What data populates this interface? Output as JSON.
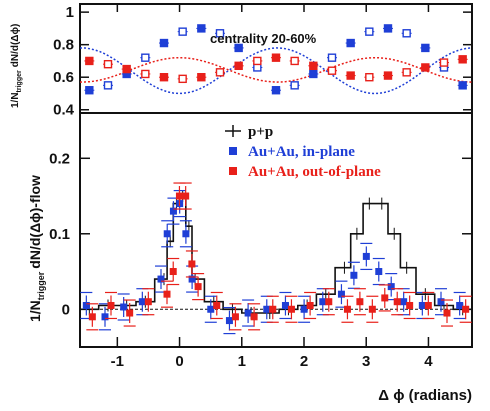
{
  "chart_data": [
    {
      "type": "line",
      "panel": "top",
      "annotation": "centrality 20-60%",
      "ylabel_main": "dN/d(Δϕ)",
      "ylabel_prefix": "1/N",
      "ylabel_sub": "trigger",
      "xlim": [
        -1.6,
        4.7
      ],
      "ylim": [
        0.38,
        1.05
      ],
      "yticks": [
        0.4,
        0.6,
        0.8,
        1
      ],
      "ytick_labels": [
        "0.4",
        "0.6",
        "0.8",
        "1"
      ],
      "grid": false,
      "x": [
        -1.45,
        -1.15,
        -0.85,
        -0.55,
        -0.25,
        0.05,
        0.35,
        0.65,
        0.95,
        1.25,
        1.55,
        1.85,
        2.15,
        2.45,
        2.75,
        3.05,
        3.35,
        3.65,
        3.95,
        4.25,
        4.55
      ],
      "series": [
        {
          "name": "",
          "color": "#1f3fd6",
          "marker": "filled-and-open-square",
          "values": [
            0.52,
            0.55,
            0.62,
            0.72,
            0.81,
            0.88,
            0.9,
            0.87,
            0.78,
            0.66,
            0.52,
            0.55,
            0.62,
            0.72,
            0.81,
            0.88,
            0.9,
            0.87,
            0.78,
            0.66,
            0.55
          ],
          "modulation_line": [
            0.5,
            0.78,
            0.5
          ]
        },
        {
          "name": "",
          "color": "#e8201a",
          "marker": "filled-and-open-square",
          "values": [
            0.7,
            0.68,
            0.65,
            0.62,
            0.6,
            0.59,
            0.6,
            0.63,
            0.67,
            0.7,
            0.72,
            0.7,
            0.67,
            0.64,
            0.61,
            0.6,
            0.61,
            0.63,
            0.66,
            0.69,
            0.71
          ],
          "modulation_line": [
            0.72,
            0.57,
            0.72
          ]
        }
      ]
    },
    {
      "type": "line",
      "panel": "bottom",
      "xlabel": "Δ ϕ (radians)",
      "ylabel_main": "dN/d(Δϕ)-flow",
      "ylabel_prefix": "1/N",
      "ylabel_sub": "trigger",
      "xlim": [
        -1.6,
        4.7
      ],
      "ylim": [
        -0.05,
        0.26
      ],
      "xticks": [
        -1,
        0,
        1,
        2,
        3,
        4
      ],
      "xtick_labels": [
        "-1",
        "0",
        "1",
        "2",
        "3",
        "4"
      ],
      "yticks": [
        0,
        0.1,
        0.2
      ],
      "ytick_labels": [
        "0",
        "0.1",
        "0.2"
      ],
      "grid": false,
      "legend": {
        "placement": "top-right",
        "entries": [
          "p+p",
          "Au+Au, in-plane",
          "Au+Au, out-of-plane"
        ]
      },
      "x": [
        -1.45,
        -1.15,
        -0.85,
        -0.55,
        -0.25,
        -0.15,
        -0.05,
        0.05,
        0.15,
        0.25,
        0.55,
        0.85,
        1.15,
        1.45,
        1.75,
        2.05,
        2.35,
        2.65,
        2.85,
        3.05,
        3.25,
        3.45,
        3.65,
        3.95,
        4.25,
        4.55
      ],
      "series": [
        {
          "name": "p+p",
          "color": "#111111",
          "style": "histogram",
          "values": [
            0.0,
            0.005,
            0.005,
            0.01,
            0.04,
            0.09,
            0.14,
            0.15,
            0.11,
            0.04,
            0.01,
            0.0,
            -0.005,
            -0.005,
            0.0,
            0.005,
            0.02,
            0.055,
            0.1,
            0.14,
            0.14,
            0.1,
            0.055,
            0.02,
            0.005,
            0.0
          ]
        },
        {
          "name": "Au+Au, in-plane",
          "color": "#1f3fd6",
          "style": "markers",
          "values": [
            0.005,
            -0.01,
            0.003,
            0.01,
            0.04,
            0.1,
            0.13,
            0.14,
            0.1,
            0.04,
            0.0,
            -0.015,
            -0.005,
            0.0,
            0.005,
            0.0,
            0.01,
            0.02,
            0.045,
            0.07,
            0.05,
            0.03,
            0.01,
            0.005,
            0.01,
            0.005
          ]
        },
        {
          "name": "Au+Au, out-of-plane",
          "color": "#e8201a",
          "style": "markers",
          "values": [
            -0.01,
            0.005,
            -0.005,
            0.01,
            0.02,
            0.05,
            0.15,
            0.15,
            0.06,
            0.03,
            0.005,
            -0.01,
            -0.01,
            0.0,
            0.0,
            0.005,
            0.01,
            0.0,
            0.01,
            0.0,
            0.015,
            0.01,
            0.005,
            0.005,
            -0.005,
            0.0
          ]
        }
      ],
      "reference_line": 0
    }
  ]
}
